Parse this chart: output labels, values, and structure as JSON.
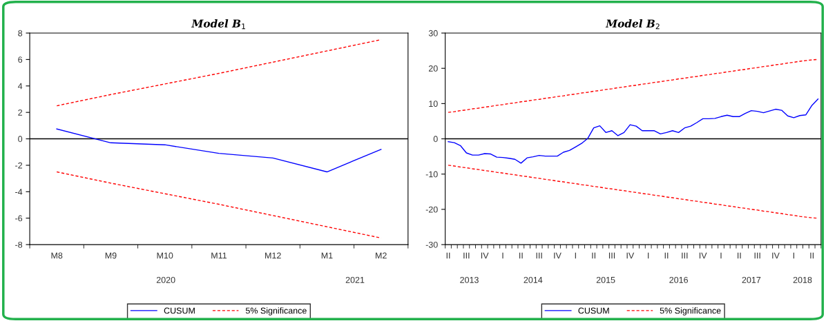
{
  "chart_data": [
    {
      "type": "line",
      "title": "Model B$_{1}$",
      "categories": [
        "M8",
        "M9",
        "M10",
        "M11",
        "M12",
        "M1",
        "M2"
      ],
      "x2lim": [
        "2020-07-16",
        "2021-02-15"
      ],
      "x2ticks": [
        {
          "value": "2020-10",
          "label": "2020"
        },
        {
          "value": "2021-01-16",
          "label": "2021"
        }
      ],
      "ylim": [
        -8,
        8
      ],
      "yticks": [
        -8,
        -6,
        -4,
        -2,
        0,
        2,
        4,
        6,
        8
      ],
      "grid": false,
      "legend": "bottom",
      "ref_lines": [
        {
          "axis": "y",
          "value": 0,
          "color": "#000000"
        }
      ],
      "series": [
        {
          "name": "CUSUM",
          "color": "#0000ff",
          "line_style": "solid",
          "values": [
            0.75,
            -0.3,
            -0.45,
            -1.1,
            -1.45,
            -2.5,
            -0.8
          ]
        },
        {
          "name": "5% Significance",
          "color": "#ff0000",
          "line_style": "dashed",
          "values": [
            2.5,
            3.35,
            4.15,
            4.95,
            5.8,
            6.65,
            7.5
          ]
        },
        {
          "color": "#ff0000",
          "line_style": "dashed",
          "values": [
            -2.5,
            -3.35,
            -4.15,
            -4.95,
            -5.8,
            -6.65,
            -7.5
          ]
        }
      ]
    },
    {
      "type": "line",
      "title": "Model B$_{2}$",
      "categories": [
        "II",
        null,
        null,
        "III",
        null,
        null,
        "IV",
        null,
        null,
        "I",
        null,
        null,
        "II",
        null,
        null,
        "III",
        null,
        null,
        "IV",
        null,
        null,
        "I",
        null,
        null,
        "II",
        null,
        null,
        "III",
        null,
        null,
        "IV",
        null,
        null,
        "I",
        null,
        null,
        "II",
        null,
        null,
        "III",
        null,
        null,
        "IV",
        null,
        null,
        "I",
        null,
        null,
        "II",
        null,
        null,
        "III",
        null,
        null,
        "IV",
        null,
        null,
        "I",
        null,
        null,
        "II",
        null
      ],
      "x2lim": [
        "2013-04-16",
        "2018-06-16"
      ],
      "x2ticks": [
        {
          "value": "2013-08-15",
          "label": "2013"
        },
        {
          "value": "2014-07",
          "label": "2014"
        },
        {
          "value": "2015-07",
          "label": "2015"
        },
        {
          "value": "2016-07",
          "label": "2016"
        },
        {
          "value": "2017-07",
          "label": "2017"
        },
        {
          "value": "2018-03-15",
          "label": "2018"
        }
      ],
      "ylim": [
        -30,
        30
      ],
      "yticks": [
        -30,
        -20,
        -10,
        0,
        10,
        20,
        30
      ],
      "grid": false,
      "legend": "bottom",
      "ref_lines": [
        {
          "axis": "y",
          "value": 0,
          "color": "#000000"
        }
      ],
      "series": [
        {
          "name": "CUSUM",
          "color": "#0000ff",
          "line_style": "solid",
          "values": [
            -0.8,
            -1.1,
            -1.9,
            -4.0,
            -4.6,
            -4.6,
            -4.2,
            -4.3,
            -5.2,
            -5.3,
            -5.5,
            -5.8,
            -6.9,
            -5.4,
            -5.1,
            -4.7,
            -4.9,
            -4.9,
            -4.9,
            -3.8,
            -3.3,
            -2.3,
            -1.3,
            0.1,
            3.1,
            3.7,
            1.8,
            2.3,
            0.9,
            1.8,
            4.0,
            3.6,
            2.3,
            2.3,
            2.3,
            1.4,
            1.8,
            2.3,
            1.8,
            3.1,
            3.6,
            4.6,
            5.7,
            5.7,
            5.8,
            6.3,
            6.7,
            6.3,
            6.3,
            7.2,
            8.0,
            7.8,
            7.4,
            7.9,
            8.4,
            8.1,
            6.5,
            6.0,
            6.6,
            6.8,
            9.5,
            11.3
          ]
        },
        {
          "name": "5% Significance",
          "color": "#ff0000",
          "line_style": "dashed",
          "values": [
            7.5,
            7.7,
            8.0,
            8.2,
            8.5,
            8.7,
            9.0,
            9.2,
            9.5,
            9.7,
            10.0,
            10.2,
            10.5,
            10.7,
            11.0,
            11.2,
            11.5,
            11.7,
            12.0,
            12.2,
            12.5,
            12.7,
            13.0,
            13.2,
            13.5,
            13.7,
            14.0,
            14.2,
            14.5,
            14.7,
            15.0,
            15.2,
            15.5,
            15.7,
            16.0,
            16.2,
            16.5,
            16.7,
            17.0,
            17.2,
            17.5,
            17.7,
            18.0,
            18.2,
            18.5,
            18.7,
            19.0,
            19.2,
            19.5,
            19.7,
            20.0,
            20.2,
            20.5,
            20.7,
            21.0,
            21.2,
            21.5,
            21.7,
            22.0,
            22.2,
            22.4,
            22.5
          ]
        },
        {
          "color": "#ff0000",
          "line_style": "dashed",
          "values": [
            -7.5,
            -7.7,
            -8.0,
            -8.2,
            -8.5,
            -8.7,
            -9.0,
            -9.2,
            -9.5,
            -9.7,
            -10.0,
            -10.2,
            -10.5,
            -10.7,
            -11.0,
            -11.2,
            -11.5,
            -11.7,
            -12.0,
            -12.2,
            -12.5,
            -12.7,
            -13.0,
            -13.2,
            -13.5,
            -13.7,
            -14.0,
            -14.2,
            -14.5,
            -14.7,
            -15.0,
            -15.2,
            -15.5,
            -15.7,
            -16.0,
            -16.2,
            -16.5,
            -16.7,
            -17.0,
            -17.2,
            -17.5,
            -17.7,
            -18.0,
            -18.2,
            -18.5,
            -18.7,
            -19.0,
            -19.2,
            -19.5,
            -19.7,
            -20.0,
            -20.2,
            -20.5,
            -20.7,
            -21.0,
            -21.2,
            -21.5,
            -21.7,
            -22.0,
            -22.2,
            -22.4,
            -22.5
          ]
        }
      ]
    }
  ]
}
